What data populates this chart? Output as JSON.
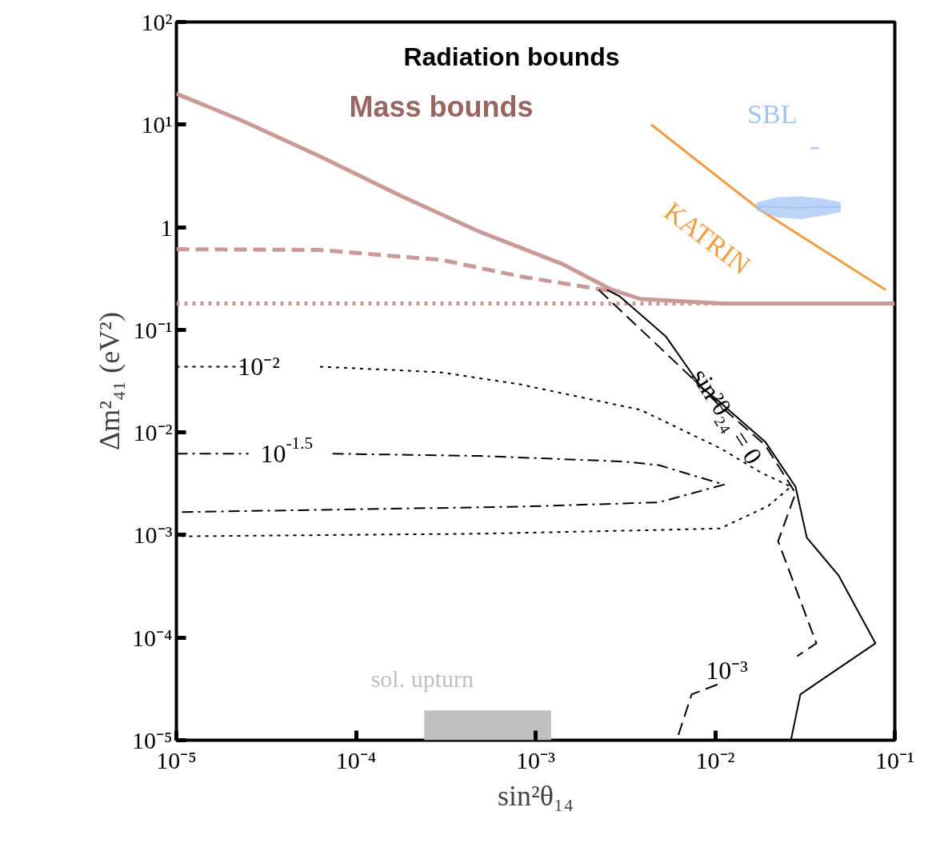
{
  "chart_data": {
    "type": "line",
    "xlabel": "sin²θ₁₄",
    "ylabel": "Δm²₄₁ (eV²)",
    "log": "xy",
    "grid": false,
    "xlim": [
      1e-05,
      0.1
    ],
    "ylim": [
      1e-05,
      100
    ],
    "xticks": [
      {
        "value": 1e-05,
        "label": "10⁻⁵"
      },
      {
        "value": 0.0001,
        "label": "10⁻⁴"
      },
      {
        "value": 0.001,
        "label": "10⁻³"
      },
      {
        "value": 0.01,
        "label": "10⁻²"
      },
      {
        "value": 0.1,
        "label": "10⁻¹"
      }
    ],
    "yticks": [
      {
        "value": 1e-05,
        "label": "10⁻⁵"
      },
      {
        "value": 0.0001,
        "label": "10⁻⁴"
      },
      {
        "value": 0.001,
        "label": "10⁻³"
      },
      {
        "value": 0.01,
        "label": "10⁻²"
      },
      {
        "value": 0.1,
        "label": "10⁻¹"
      },
      1,
      {
        "value": 10,
        "label": "10¹"
      },
      {
        "value": 100,
        "label": "10²"
      }
    ],
    "annotations": [
      "Radiation bounds"
    ],
    "series": [
      {
        "name": "Mass bounds",
        "line_style": "solid",
        "color": "#c99a96",
        "x": [
          1e-05,
          2.3e-05,
          6.3e-05,
          0.00018,
          0.00049,
          0.0014,
          0.0026,
          0.0038,
          0.011,
          0.1
        ],
        "values": [
          20,
          11,
          4.9,
          2.0,
          0.9,
          0.44,
          0.25,
          0.2,
          0.18,
          0.18
        ]
      },
      {
        "line_style": "dashed",
        "color": "#c99a96",
        "x": [
          1e-05,
          6.3e-05,
          0.0003,
          0.00083,
          0.0026
        ],
        "values": [
          0.61,
          0.6,
          0.48,
          0.33,
          0.24
        ]
      },
      {
        "line_style": "dotted",
        "color": "#c99a96",
        "x": [
          1e-05,
          0.01
        ],
        "values": [
          0.18,
          0.18
        ]
      },
      {
        "name": "KATRIN",
        "line_style": "solid",
        "color": "#f39c40",
        "x": [
          0.0044,
          0.0178,
          0.089
        ],
        "values": [
          10,
          1.47,
          0.245
        ]
      },
      {
        "name": "SBL",
        "line_style": "solid",
        "color": "#a3c4f3",
        "x": [
          0.017,
          0.022,
          0.03,
          0.04,
          0.05
        ],
        "values": [
          1.6,
          1.56,
          1.55,
          1.58,
          1.57
        ],
        "lower": [
          1.45,
          1.25,
          1.2,
          1.3,
          1.4
        ],
        "upper": [
          1.75,
          1.95,
          2.0,
          1.9,
          1.75
        ]
      },
      {
        "line_style": "solid",
        "color": "#a3c4f3",
        "x": [
          0.034,
          0.038
        ],
        "values": [
          5.9,
          5.9
        ]
      },
      {
        "name": "sin²θ₂₄ = 0",
        "line_style": "solid",
        "color": "#000000",
        "x": [
          0.0025,
          0.00294,
          0.0053,
          0.0084,
          0.0103,
          0.019,
          0.028,
          0.0324,
          0.0488,
          0.078,
          0.0298,
          0.0264
        ],
        "values": [
          0.245,
          0.212,
          0.0865,
          0.0274,
          0.0206,
          0.0081,
          0.00296,
          0.00094,
          0.0004,
          8.8e-05,
          2.8e-05,
          1e-05
        ]
      },
      {
        "name": "10⁻³",
        "line_style": "dashed",
        "color": "#000000",
        "x": [
          0.00225,
          0.0071,
          0.0103,
          0.019,
          0.028,
          0.0224,
          0.0366,
          0.0286,
          0.0161,
          0.0103,
          0.0074,
          0.0061
        ],
        "values": [
          0.245,
          0.0366,
          0.0191,
          0.0075,
          0.00256,
          0.00087,
          8.8e-05,
          6.6e-05,
          null,
          3.5e-05,
          2.8e-05,
          1e-05
        ]
      },
      {
        "name": "10⁻²",
        "line_style": "dotted",
        "color": "#000000",
        "x": [
          1e-05,
          2.52e-05,
          4e-05,
          6.3e-05,
          0.000295,
          0.00082,
          0.00383,
          0.0107,
          0.0178,
          0.0264,
          0.0198,
          0.0107,
          0.00485,
          0.00049,
          1e-05
        ],
        "values": [
          0.0437,
          0.0437,
          null,
          0.0437,
          0.0386,
          0.0294,
          0.0166,
          0.007,
          0.0041,
          0.00296,
          0.00193,
          0.00116,
          0.00112,
          0.00103,
          0.00097
        ]
      },
      {
        "name": "10$^{-1.5}$",
        "line_style": "dashdot",
        "color": "#000000",
        "x": [
          1e-05,
          2.52e-05,
          4.3e-05,
          7.4e-05,
          0.00049,
          0.00312,
          0.00485,
          0.0112,
          0.00485,
          0.00082,
          1e-05
        ],
        "values": [
          0.0062,
          0.0062,
          null,
          0.0062,
          0.0059,
          0.0052,
          0.0048,
          0.0031,
          0.00208,
          0.00189,
          0.00167
        ]
      },
      {
        "name": "sol. upturn",
        "type": "area",
        "color": "#c0c0c0",
        "x": [
          0.00024,
          0.00122
        ],
        "values": [
          1.95e-05,
          1.95e-05
        ]
      }
    ]
  }
}
